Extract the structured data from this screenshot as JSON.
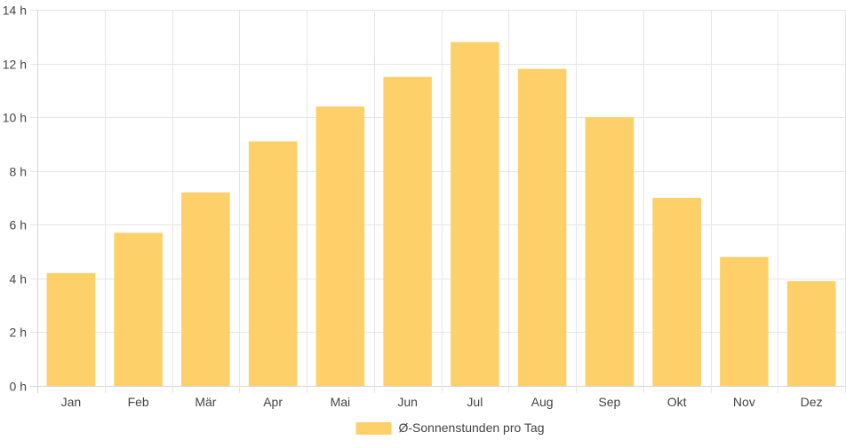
{
  "chart_data": {
    "type": "bar",
    "categories": [
      "Jan",
      "Feb",
      "Mär",
      "Apr",
      "Mai",
      "Jun",
      "Jul",
      "Aug",
      "Sep",
      "Okt",
      "Nov",
      "Dez"
    ],
    "series": [
      {
        "name": "Ø-Sonnenstunden pro Tag",
        "values": [
          4.2,
          5.7,
          7.2,
          9.1,
          10.4,
          11.5,
          12.8,
          11.8,
          10.0,
          7.0,
          4.8,
          3.9
        ],
        "color": "#fdd06a"
      }
    ],
    "y_ticks": [
      "0 h",
      "2 h",
      "4 h",
      "6 h",
      "8 h",
      "10 h",
      "12 h",
      "14 h"
    ],
    "ylim": [
      0,
      14
    ],
    "grid": true,
    "legend_position": "bottom"
  }
}
